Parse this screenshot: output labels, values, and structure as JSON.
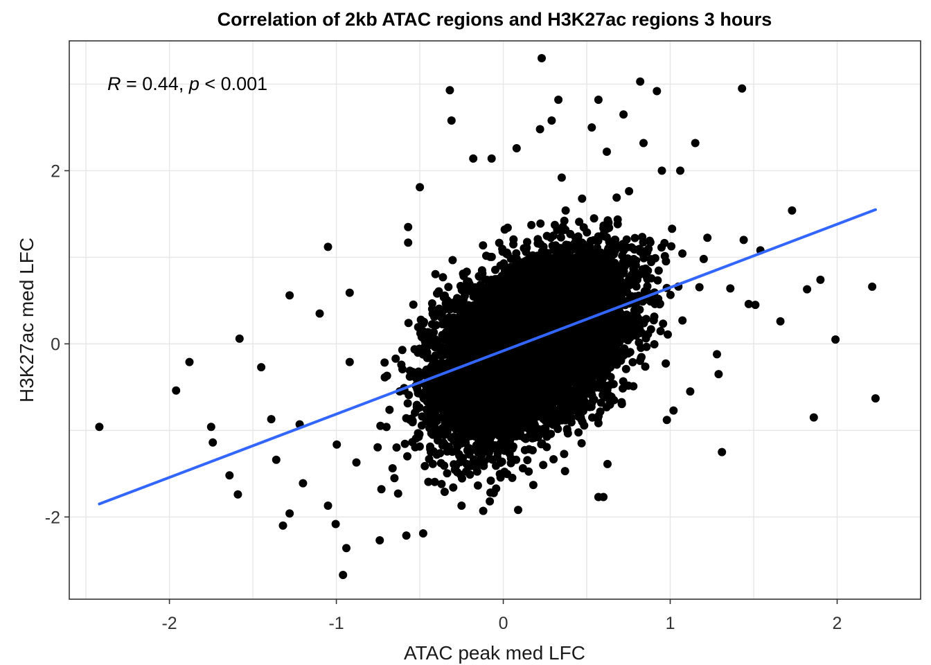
{
  "chart_data": {
    "type": "scatter",
    "title": "Correlation of 2kb ATAC regions and H3K27ac regions 3 hours",
    "xlabel": "ATAC peak med LFC",
    "ylabel": "H3K27ac med LFC",
    "xlim": [
      -2.6,
      2.5
    ],
    "ylim": [
      -2.95,
      3.5
    ],
    "x_ticks": [
      -2,
      -1,
      0,
      1,
      2
    ],
    "x_tick_labels": [
      "-2",
      "-1",
      "0",
      "1",
      "2"
    ],
    "y_ticks": [
      -2,
      0,
      2
    ],
    "y_tick_labels": [
      "-2",
      "0",
      "2"
    ],
    "grid": true,
    "annotation": {
      "r_symbol": "R",
      "r_text": " = 0.44, ",
      "p_symbol": "p",
      "p_text": " < 0.001"
    },
    "colors": {
      "points": "#000000",
      "fit_line": "#3366ff"
    },
    "fit_line": {
      "x": [
        -2.42,
        2.23
      ],
      "y": [
        -1.85,
        1.55
      ]
    },
    "cloud": {
      "n": 9000,
      "center_x": 0.15,
      "center_y": -0.05,
      "sd_x": 0.27,
      "sd_y": 0.5,
      "correlation": 0.44,
      "seed": 7
    },
    "outliers": [
      {
        "x": 0.23,
        "y": 3.3
      },
      {
        "x": -0.32,
        "y": 2.93
      },
      {
        "x": -0.31,
        "y": 2.58
      },
      {
        "x": 0.82,
        "y": 3.03
      },
      {
        "x": 0.92,
        "y": 2.92
      },
      {
        "x": 1.43,
        "y": 2.95
      },
      {
        "x": 0.33,
        "y": 2.82
      },
      {
        "x": 0.57,
        "y": 2.82
      },
      {
        "x": 0.72,
        "y": 2.65
      },
      {
        "x": 0.53,
        "y": 2.5
      },
      {
        "x": 0.22,
        "y": 2.48
      },
      {
        "x": 0.29,
        "y": 2.58
      },
      {
        "x": 0.84,
        "y": 2.32
      },
      {
        "x": 1.15,
        "y": 2.32
      },
      {
        "x": 0.08,
        "y": 2.26
      },
      {
        "x": -0.18,
        "y": 2.14
      },
      {
        "x": -0.07,
        "y": 2.14
      },
      {
        "x": 0.62,
        "y": 2.22
      },
      {
        "x": 0.95,
        "y": 2.0
      },
      {
        "x": 1.06,
        "y": 2.0
      },
      {
        "x": -0.5,
        "y": 1.81
      },
      {
        "x": 1.73,
        "y": 1.54
      },
      {
        "x": -1.05,
        "y": 1.12
      },
      {
        "x": -0.57,
        "y": 1.17
      },
      {
        "x": -0.57,
        "y": 1.35
      },
      {
        "x": 1.44,
        "y": 1.2
      },
      {
        "x": 1.54,
        "y": 1.08
      },
      {
        "x": 2.21,
        "y": 0.66
      },
      {
        "x": 1.9,
        "y": 0.74
      },
      {
        "x": 1.82,
        "y": 0.63
      },
      {
        "x": 1.66,
        "y": 0.26
      },
      {
        "x": 1.99,
        "y": 0.05
      },
      {
        "x": 2.23,
        "y": -0.63
      },
      {
        "x": 1.86,
        "y": -0.85
      },
      {
        "x": 1.31,
        "y": -1.25
      },
      {
        "x": 1.47,
        "y": 0.46
      },
      {
        "x": 1.51,
        "y": 0.45
      },
      {
        "x": 1.36,
        "y": 0.64
      },
      {
        "x": -0.96,
        "y": -2.67
      },
      {
        "x": -0.94,
        "y": -2.36
      },
      {
        "x": -0.74,
        "y": -2.27
      },
      {
        "x": -0.48,
        "y": -2.19
      },
      {
        "x": -1.32,
        "y": -2.1
      },
      {
        "x": -2.42,
        "y": -0.96
      },
      {
        "x": -1.96,
        "y": -0.54
      },
      {
        "x": -1.88,
        "y": -0.21
      },
      {
        "x": -1.58,
        "y": 0.06
      },
      {
        "x": -1.45,
        "y": -0.27
      },
      {
        "x": -1.28,
        "y": 0.56
      },
      {
        "x": -1.75,
        "y": -0.96
      },
      {
        "x": -1.74,
        "y": -1.14
      },
      {
        "x": -1.64,
        "y": -1.52
      },
      {
        "x": -1.59,
        "y": -1.74
      },
      {
        "x": -1.28,
        "y": -1.96
      },
      {
        "x": -1.05,
        "y": -1.87
      },
      {
        "x": -0.92,
        "y": 0.59
      },
      {
        "x": -1.1,
        "y": 0.35
      },
      {
        "x": -0.73,
        "y": -1.68
      },
      {
        "x": -0.63,
        "y": -1.73
      },
      {
        "x": -0.88,
        "y": -1.37
      },
      {
        "x": 0.18,
        "y": -1.63
      },
      {
        "x": 0.37,
        "y": -1.47
      },
      {
        "x": 0.6,
        "y": -1.77
      },
      {
        "x": 0.57,
        "y": -1.77
      },
      {
        "x": 0.98,
        "y": -0.88
      },
      {
        "x": 1.02,
        "y": -0.77
      },
      {
        "x": 1.12,
        "y": -0.55
      },
      {
        "x": 1.29,
        "y": -0.35
      },
      {
        "x": 1.28,
        "y": -0.12
      },
      {
        "x": 0.79,
        "y": 0.46
      },
      {
        "x": 0.71,
        "y": -0.69
      },
      {
        "x": 0.35,
        "y": 1.92
      },
      {
        "x": -0.25,
        "y": -1.87
      },
      {
        "x": -0.12,
        "y": -1.93
      },
      {
        "x": -0.37,
        "y": -1.62
      },
      {
        "x": -1.2,
        "y": -1.61
      },
      {
        "x": -1.36,
        "y": -1.34
      },
      {
        "x": -1.39,
        "y": -0.87
      },
      {
        "x": -1.22,
        "y": -0.93
      },
      {
        "x": -0.92,
        "y": -0.21
      },
      {
        "x": -0.53,
        "y": -0.38
      }
    ]
  }
}
